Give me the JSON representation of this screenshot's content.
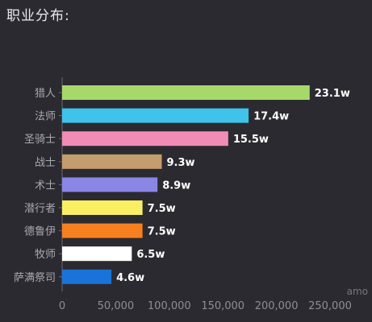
{
  "title": "职业分布:",
  "chart_data": {
    "type": "bar",
    "orientation": "horizontal",
    "categories": [
      "猎人",
      "法师",
      "圣骑士",
      "战士",
      "术士",
      "潜行者",
      "德鲁伊",
      "牧师",
      "萨满祭司"
    ],
    "values": [
      231000,
      174000,
      155000,
      93000,
      89000,
      75000,
      75000,
      65000,
      46000
    ],
    "data_labels": [
      "23.1w",
      "17.4w",
      "15.5w",
      "9.3w",
      "8.9w",
      "7.5w",
      "7.5w",
      "6.5w",
      "4.6w"
    ],
    "colors": [
      "#a6d96a",
      "#3fc3ea",
      "#f08cb6",
      "#c49d6e",
      "#8a86e6",
      "#f8f062",
      "#f6801e",
      "#ffffff",
      "#1a73d8"
    ],
    "x_ticks": [
      "0",
      "50,000",
      "100,000",
      "150,000",
      "200,000",
      "250,000"
    ],
    "x_tick_values": [
      0,
      50000,
      100000,
      150000,
      200000,
      250000
    ],
    "xlim": [
      0,
      250000
    ],
    "xlabel": "amo",
    "grid": false
  }
}
